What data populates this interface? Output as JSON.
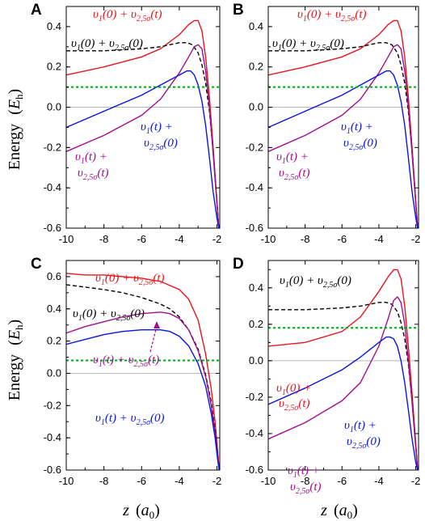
{
  "figure": {
    "ylabel": "Energy  (E_h)",
    "xlabel": "z  (a_0)"
  },
  "chart_data": [
    {
      "panel": "A",
      "type": "line",
      "xlim": [
        -10,
        -1.85
      ],
      "ylim": [
        -0.6,
        0.5
      ],
      "xticks": [
        "-10",
        "-8",
        "-6",
        "-4",
        "-2"
      ],
      "yticks": [
        "0.4",
        "0.2",
        "0.0",
        "-0.2",
        "-0.4",
        "-0.6"
      ],
      "ytick_values": [
        0.4,
        0.2,
        0.0,
        -0.2,
        -0.4,
        -0.6
      ],
      "zero_line": 0.0,
      "colors": {
        "red": "#e8141c",
        "black": "#000000",
        "purple": "#a0108f",
        "blue": "#0a14e6",
        "green": "#0aa01e"
      },
      "series": [
        {
          "color": "#e8141c",
          "dash": "solid",
          "x": [
            -10,
            -8,
            -6,
            -5,
            -4,
            -3.5,
            -3.2,
            -3.0,
            -2.8,
            -2.6,
            -2.4,
            -2.2,
            -2.0,
            -1.9
          ],
          "y": [
            0.16,
            0.2,
            0.25,
            0.29,
            0.36,
            0.41,
            0.43,
            0.43,
            0.38,
            0.25,
            0.05,
            -0.2,
            -0.47,
            -0.6
          ]
        },
        {
          "color": "#000000",
          "dash": "dash",
          "x": [
            -10,
            -8,
            -6,
            -5,
            -4,
            -3.6,
            -3.3,
            -3.0,
            -2.8,
            -2.6,
            -2.4,
            -2.2,
            -2.0,
            -1.9
          ],
          "y": [
            0.28,
            0.28,
            0.29,
            0.3,
            0.32,
            0.32,
            0.31,
            0.27,
            0.21,
            0.12,
            -0.02,
            -0.22,
            -0.47,
            -0.6
          ]
        },
        {
          "color": "#a0108f",
          "dash": "solid",
          "x": [
            -10,
            -8,
            -6,
            -5,
            -4,
            -3.5,
            -3.2,
            -3.0,
            -2.8,
            -2.6,
            -2.4,
            -2.2,
            -2.0,
            -1.9
          ],
          "y": [
            -0.22,
            -0.14,
            -0.04,
            0.04,
            0.17,
            0.25,
            0.3,
            0.31,
            0.29,
            0.18,
            0.0,
            -0.23,
            -0.48,
            -0.6
          ]
        },
        {
          "color": "#0a14e6",
          "dash": "solid",
          "x": [
            -10,
            -8,
            -6,
            -5,
            -4,
            -3.6,
            -3.4,
            -3.2,
            -3.0,
            -2.8,
            -2.6,
            -2.4,
            -2.2,
            -2.0,
            -1.9
          ],
          "y": [
            -0.1,
            -0.02,
            0.06,
            0.11,
            0.16,
            0.18,
            0.18,
            0.16,
            0.11,
            0.03,
            -0.09,
            -0.25,
            -0.42,
            -0.55,
            -0.6
          ]
        },
        {
          "color": "#0aa01e",
          "dash": "dot",
          "x": [
            -10,
            -1.85
          ],
          "y": [
            0.1,
            0.1
          ]
        }
      ]
    },
    {
      "panel": "B",
      "type": "line",
      "xlim": [
        -10,
        -1.85
      ],
      "ylim": [
        -0.6,
        0.5
      ],
      "xticks": [
        "-10",
        "-8",
        "-6",
        "-4",
        "-2"
      ],
      "yticks": [
        "0.4",
        "0.2",
        "0.0",
        "-0.2",
        "-0.4",
        "-0.6"
      ],
      "ytick_values": [
        0.4,
        0.2,
        0.0,
        -0.2,
        -0.4,
        -0.6
      ],
      "zero_line": 0.0,
      "series": [
        {
          "color": "#e8141c",
          "dash": "solid",
          "x": [
            -10,
            -8,
            -6,
            -5,
            -4,
            -3.5,
            -3.2,
            -3.0,
            -2.8,
            -2.6,
            -2.4,
            -2.2,
            -2.0,
            -1.9
          ],
          "y": [
            0.16,
            0.2,
            0.25,
            0.29,
            0.36,
            0.41,
            0.43,
            0.43,
            0.38,
            0.25,
            0.05,
            -0.2,
            -0.47,
            -0.6
          ]
        },
        {
          "color": "#000000",
          "dash": "dash",
          "x": [
            -10,
            -8,
            -6,
            -5,
            -4,
            -3.6,
            -3.3,
            -3.0,
            -2.8,
            -2.6,
            -2.4,
            -2.2,
            -2.0,
            -1.9
          ],
          "y": [
            0.28,
            0.28,
            0.29,
            0.3,
            0.32,
            0.32,
            0.31,
            0.27,
            0.21,
            0.12,
            -0.02,
            -0.22,
            -0.47,
            -0.6
          ]
        },
        {
          "color": "#a0108f",
          "dash": "solid",
          "x": [
            -10,
            -8,
            -6,
            -5,
            -4,
            -3.5,
            -3.2,
            -3.0,
            -2.8,
            -2.6,
            -2.4,
            -2.2,
            -2.0,
            -1.9
          ],
          "y": [
            -0.22,
            -0.14,
            -0.04,
            0.04,
            0.17,
            0.25,
            0.3,
            0.31,
            0.29,
            0.18,
            0.0,
            -0.23,
            -0.48,
            -0.6
          ]
        },
        {
          "color": "#0a14e6",
          "dash": "solid",
          "x": [
            -10,
            -8,
            -6,
            -5,
            -4,
            -3.6,
            -3.4,
            -3.2,
            -3.0,
            -2.8,
            -2.6,
            -2.4,
            -2.2,
            -2.0,
            -1.9
          ],
          "y": [
            -0.1,
            -0.02,
            0.06,
            0.11,
            0.16,
            0.18,
            0.18,
            0.16,
            0.11,
            0.03,
            -0.09,
            -0.25,
            -0.42,
            -0.55,
            -0.6
          ]
        },
        {
          "color": "#0aa01e",
          "dash": "dot",
          "x": [
            -10,
            -1.85
          ],
          "y": [
            0.1,
            0.1
          ]
        }
      ]
    },
    {
      "panel": "C",
      "type": "line",
      "xlim": [
        -10,
        -1.85
      ],
      "ylim": [
        -0.6,
        0.7
      ],
      "xticks": [
        "-10",
        "-8",
        "-6",
        "-4",
        "-2"
      ],
      "yticks": [
        "0.6",
        "0.4",
        "0.2",
        "0.0",
        "-0.2",
        "-0.4",
        "-0.6"
      ],
      "ytick_values": [
        0.6,
        0.4,
        0.2,
        0.0,
        -0.2,
        -0.4,
        -0.6
      ],
      "zero_line": 0.0,
      "series": [
        {
          "color": "#e8141c",
          "dash": "solid",
          "x": [
            -10,
            -9,
            -8,
            -7,
            -6,
            -5,
            -4,
            -3.5,
            -3.0,
            -2.6,
            -2.3,
            -2.1,
            -1.95,
            -1.88
          ],
          "y": [
            0.62,
            0.61,
            0.61,
            0.6,
            0.59,
            0.57,
            0.52,
            0.46,
            0.33,
            0.12,
            -0.1,
            -0.3,
            -0.5,
            -0.6
          ]
        },
        {
          "color": "#000000",
          "dash": "dash",
          "x": [
            -10,
            -8,
            -7,
            -6,
            -5,
            -4.5,
            -4,
            -3.5,
            -3.0,
            -2.6,
            -2.3,
            -2.1,
            -1.95,
            -1.88
          ],
          "y": [
            0.55,
            0.52,
            0.5,
            0.47,
            0.43,
            0.4,
            0.35,
            0.27,
            0.15,
            -0.01,
            -0.18,
            -0.35,
            -0.52,
            -0.6
          ]
        },
        {
          "color": "#a0108f",
          "dash": "solid",
          "x": [
            -10,
            -9,
            -8,
            -7,
            -6,
            -5,
            -4.5,
            -4,
            -3.5,
            -3.0,
            -2.6,
            -2.3,
            -2.1,
            -1.95,
            -1.88
          ],
          "y": [
            0.25,
            0.29,
            0.32,
            0.35,
            0.37,
            0.38,
            0.37,
            0.34,
            0.27,
            0.14,
            -0.02,
            -0.2,
            -0.37,
            -0.53,
            -0.6
          ]
        },
        {
          "color": "#0a14e6",
          "dash": "solid",
          "x": [
            -10,
            -9,
            -8,
            -7,
            -6,
            -5,
            -4.5,
            -4,
            -3.5,
            -3.0,
            -2.6,
            -2.3,
            -2.1,
            -1.95,
            -1.88
          ],
          "y": [
            0.18,
            0.21,
            0.24,
            0.26,
            0.27,
            0.27,
            0.26,
            0.23,
            0.17,
            0.06,
            -0.08,
            -0.25,
            -0.4,
            -0.55,
            -0.6
          ]
        },
        {
          "color": "#0aa01e",
          "dash": "dot",
          "x": [
            -10,
            -1.85
          ],
          "y": [
            0.08,
            0.08
          ]
        }
      ]
    },
    {
      "panel": "D",
      "type": "line",
      "xlim": [
        -10,
        -1.85
      ],
      "ylim": [
        -0.6,
        0.55
      ],
      "xticks": [
        "-10",
        "-8",
        "-6",
        "-4",
        "-2"
      ],
      "yticks": [
        "0.4",
        "0.2",
        "0.0",
        "-0.2",
        "-0.4",
        "-0.6"
      ],
      "ytick_values": [
        0.4,
        0.2,
        0.0,
        -0.2,
        -0.4,
        -0.6
      ],
      "zero_line": 0.0,
      "series": [
        {
          "color": "#e8141c",
          "dash": "solid",
          "x": [
            -10,
            -8,
            -6,
            -5,
            -4,
            -3.5,
            -3.2,
            -3.0,
            -2.8,
            -2.6,
            -2.4,
            -2.2,
            -2.0,
            -1.9
          ],
          "y": [
            0.08,
            0.1,
            0.16,
            0.24,
            0.38,
            0.46,
            0.5,
            0.5,
            0.45,
            0.3,
            0.08,
            -0.18,
            -0.46,
            -0.6
          ]
        },
        {
          "color": "#000000",
          "dash": "dash",
          "x": [
            -10,
            -8,
            -6,
            -5,
            -4,
            -3.6,
            -3.3,
            -3.0,
            -2.8,
            -2.6,
            -2.4,
            -2.2,
            -2.0,
            -1.9
          ],
          "y": [
            0.28,
            0.28,
            0.29,
            0.3,
            0.32,
            0.32,
            0.31,
            0.27,
            0.21,
            0.12,
            -0.02,
            -0.22,
            -0.47,
            -0.6
          ]
        },
        {
          "color": "#a0108f",
          "dash": "solid",
          "x": [
            -10,
            -8,
            -6,
            -5,
            -4,
            -3.5,
            -3.2,
            -3.0,
            -2.8,
            -2.6,
            -2.4,
            -2.2,
            -2.0,
            -1.9
          ],
          "y": [
            -0.43,
            -0.34,
            -0.22,
            -0.12,
            0.08,
            0.23,
            0.33,
            0.35,
            0.32,
            0.2,
            0.0,
            -0.23,
            -0.48,
            -0.6
          ]
        },
        {
          "color": "#0a14e6",
          "dash": "solid",
          "x": [
            -10,
            -8,
            -6,
            -5,
            -4,
            -3.6,
            -3.4,
            -3.2,
            -3.0,
            -2.8,
            -2.6,
            -2.4,
            -2.2,
            -2.0,
            -1.9
          ],
          "y": [
            -0.24,
            -0.15,
            -0.05,
            0.02,
            0.1,
            0.13,
            0.13,
            0.12,
            0.08,
            0.0,
            -0.12,
            -0.27,
            -0.43,
            -0.56,
            -0.6
          ]
        },
        {
          "color": "#0aa01e",
          "dash": "dot",
          "x": [
            -10,
            -1.85
          ],
          "y": [
            0.18,
            0.18
          ]
        }
      ]
    }
  ]
}
